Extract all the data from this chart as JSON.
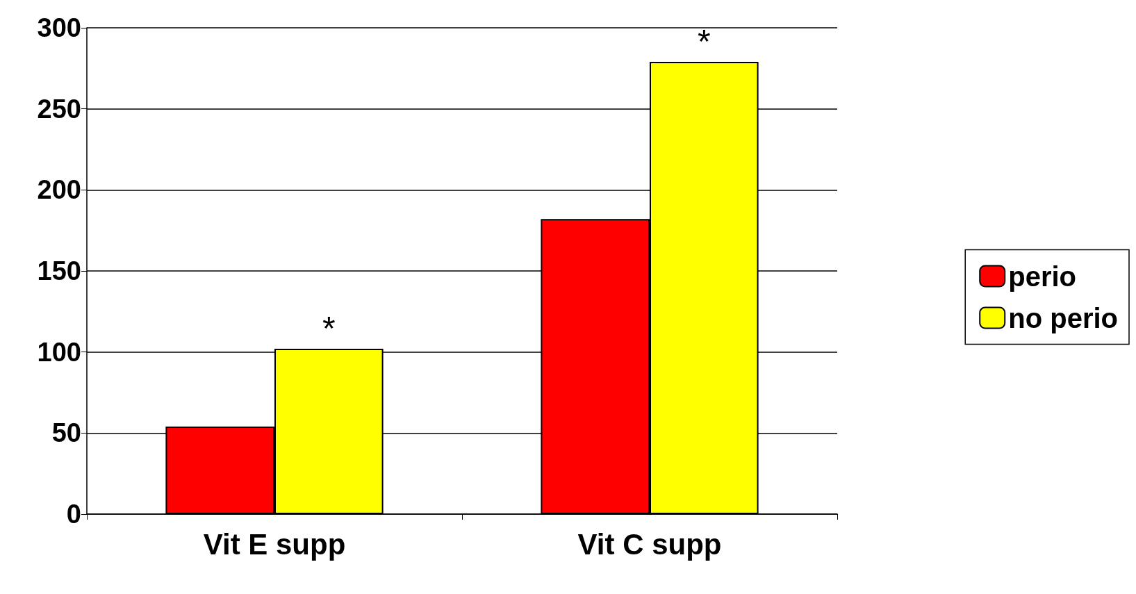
{
  "chart_data": {
    "type": "bar",
    "categories": [
      "Vit E supp",
      "Vit C supp"
    ],
    "series": [
      {
        "name": "perio",
        "color": "#ff0000",
        "values": [
          54,
          182
        ]
      },
      {
        "name": "no perio",
        "color": "#ffff00",
        "values": [
          102,
          279
        ]
      }
    ],
    "ylim": [
      0,
      300
    ],
    "yticks": [
      0,
      50,
      100,
      150,
      200,
      250,
      300
    ],
    "grid": "y",
    "legend": "right",
    "annotations": [
      {
        "text": "*",
        "x": "Vit E supp",
        "y": 102
      },
      {
        "text": "*",
        "x": "Vit C supp",
        "y": 279
      }
    ]
  }
}
